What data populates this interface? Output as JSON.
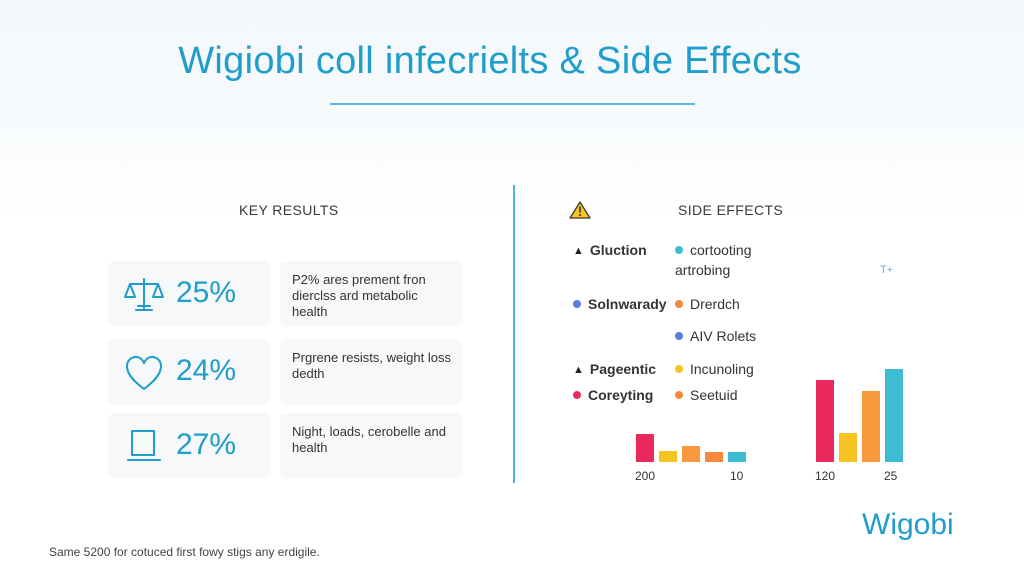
{
  "title": "Wigiobi coll infecrielts & Side Effects",
  "key_results": {
    "heading": "KEY RESULTS",
    "stats": [
      {
        "icon": "scale-icon",
        "value": "25%",
        "text": "P2% ares prement fron dierclss ard metabolic health"
      },
      {
        "icon": "heart-icon",
        "value": "24%",
        "text": "Prgrene resists, weight loss dedth"
      },
      {
        "icon": "container-icon",
        "value": "27%",
        "text": "Night, loads, cerobelle and health"
      }
    ]
  },
  "side_effects": {
    "heading": "SIDE EFFECTS",
    "warning_icon": "warning-icon",
    "legend": [
      {
        "label": "Gluction",
        "marker": "triangle",
        "color": "#222222",
        "bold": true
      },
      {
        "label": "cortooting",
        "marker": "dot",
        "color": "#3dbcd3",
        "bold": false
      },
      {
        "label": "artrobing",
        "marker": "none",
        "color": "",
        "bold": false
      },
      {
        "label": "Solnwarady",
        "marker": "dot",
        "color": "#5b7be0",
        "bold": true
      },
      {
        "label": "Drerdch",
        "marker": "dot",
        "color": "#f5883c",
        "bold": false
      },
      {
        "label": "AIV Rolets",
        "marker": "dot",
        "color": "#5b7be0",
        "bold": false
      },
      {
        "label": "Pageentic",
        "marker": "triangle",
        "color": "#222222",
        "bold": true
      },
      {
        "label": "Incunoling",
        "marker": "dot",
        "color": "#f7c521",
        "bold": false
      },
      {
        "label": "Coreyting",
        "marker": "dot",
        "color": "#ea2a5c",
        "bold": true
      },
      {
        "label": "Seetuid",
        "marker": "dot",
        "color": "#f5883c",
        "bold": false
      }
    ],
    "chart_left": {
      "labels": [
        "200",
        "10"
      ],
      "bars": [
        {
          "value": 28,
          "color": "#ea2a5c"
        },
        {
          "value": 11,
          "color": "#f7c521"
        },
        {
          "value": 16,
          "color": "#f7993c"
        },
        {
          "value": 10,
          "color": "#f5883c"
        },
        {
          "value": 10,
          "color": "#3dbcd3"
        }
      ]
    },
    "chart_right": {
      "labels": [
        "120",
        "25"
      ],
      "bars": [
        {
          "value": 82,
          "color": "#ea2a5c"
        },
        {
          "value": 29,
          "color": "#f7c521"
        },
        {
          "value": 71,
          "color": "#f7993c"
        },
        {
          "value": 93,
          "color": "#3dbcd3"
        }
      ]
    }
  },
  "brand": "Wigobi",
  "footnote": "Same 5200 for cotuced first fowy stigs any erdigile.",
  "sparkle": "T+",
  "colors": {
    "accent": "#1f9ecb",
    "divider": "#4fb4d8"
  }
}
